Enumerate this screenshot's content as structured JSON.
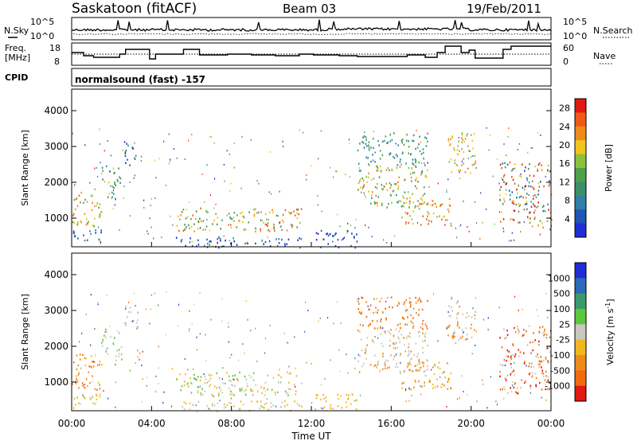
{
  "header": {
    "station": "Saskatoon (fitACF)",
    "beam": "Beam 03",
    "date": "19/Feb/2011"
  },
  "labels": {
    "nsky": "N.Sky",
    "nsearch": "N.Search",
    "freq": "Freq.",
    "freq_unit": "[MHz]",
    "nave": "Nave",
    "cpid": "CPID",
    "mode": "normalsound (fast) -157",
    "slant_range": "Slant Range [km]",
    "time_axis": "Time UT",
    "power_title": "Power [dB]",
    "velocity_title": "Velocity [m s",
    "velocity_sup": "-1",
    "velocity_close": "]"
  },
  "noise_panel": {
    "left_ticks": [
      "10^5",
      "10^0"
    ],
    "right_ticks": [
      "10^5",
      "10^0"
    ]
  },
  "freq_panel": {
    "left_ticks": [
      "18",
      "8"
    ],
    "right_ticks": [
      "60",
      "0"
    ]
  },
  "colors": {
    "power_scale": [
      "#1f2dd6",
      "#1e56b3",
      "#2f7fa6",
      "#3b8f6a",
      "#4fa04a",
      "#8cc23a",
      "#f0c41a",
      "#f08a1a",
      "#f05a14",
      "#e01a10"
    ],
    "velocity_scale": [
      "#1f2dd6",
      "#2a6ab8",
      "#3a9a6a",
      "#5cc840",
      "#c8c8c0",
      "#f0b820",
      "#f08a1a",
      "#f06a10",
      "#e01a10"
    ],
    "ground_scatter": "#c0c0c0"
  },
  "chart_data": [
    {
      "type": "heatmap",
      "name": "Power",
      "x_range": [
        "00:00",
        "00:00"
      ],
      "xticks": [
        "00:00",
        "04:00",
        "08:00",
        "12:00",
        "16:00",
        "20:00",
        "00:00"
      ],
      "ylim": [
        200,
        4600
      ],
      "yticks": [
        "1000",
        "2000",
        "3000",
        "4000"
      ],
      "colorbar_ticks": [
        "4",
        "8",
        "12",
        "16",
        "20",
        "24",
        "28"
      ],
      "colorbar_range": [
        0,
        30
      ]
    },
    {
      "type": "heatmap",
      "name": "Velocity",
      "x_range": [
        "00:00",
        "00:00"
      ],
      "xticks": [
        "00:00",
        "04:00",
        "08:00",
        "12:00",
        "16:00",
        "20:00",
        "00:00"
      ],
      "ylim": [
        200,
        4600
      ],
      "yticks": [
        "1000",
        "2000",
        "3000",
        "4000"
      ],
      "colorbar_ticks": [
        "1000",
        "500",
        "100",
        "25",
        "-25",
        "-100",
        "-500",
        "-1000"
      ]
    }
  ]
}
